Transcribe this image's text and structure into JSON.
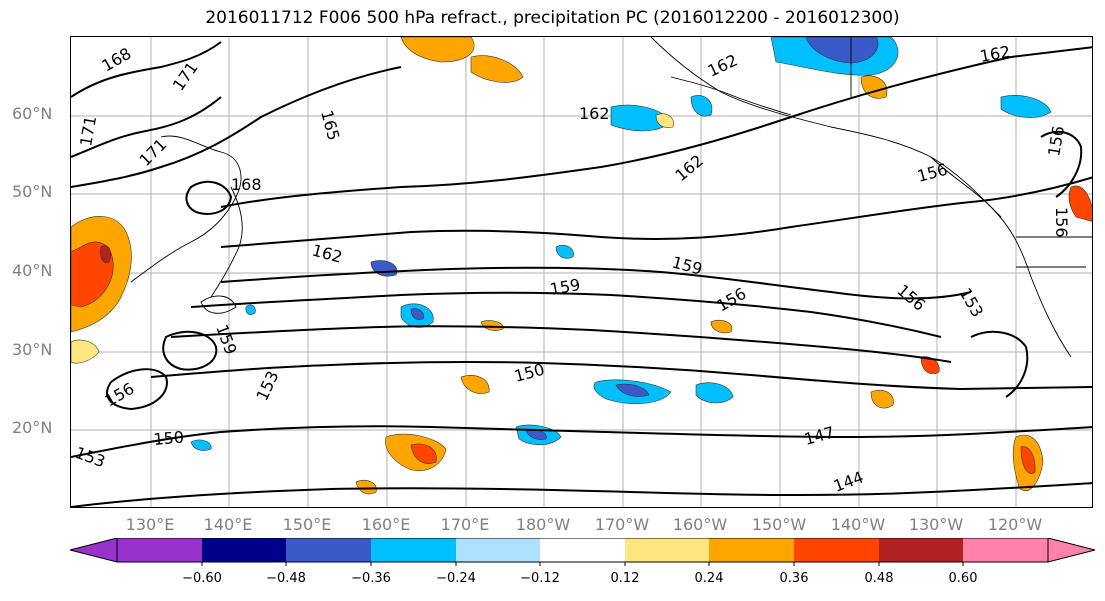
{
  "title": "2016011712 F006 500 hPa refract., precipitation PC (2016012200 - 2016012300)",
  "lat_labels": [
    "60°N",
    "50°N",
    "40°N",
    "30°N",
    "20°N"
  ],
  "lon_labels": [
    "130°E",
    "140°E",
    "150°E",
    "160°E",
    "170°E",
    "180°W",
    "170°W",
    "160°W",
    "150°W",
    "140°W",
    "130°W",
    "120°W"
  ],
  "contour_labels": [
    "168",
    "171",
    "171",
    "171",
    "165",
    "162",
    "162",
    "162",
    "162",
    "168",
    "162",
    "159",
    "159",
    "156",
    "156",
    "156",
    "159",
    "153",
    "150",
    "150",
    "147",
    "144",
    "156",
    "153",
    "153",
    "156",
    "156"
  ],
  "colorbar": {
    "colors": [
      "#9932cc",
      "#00008b",
      "#3a5bc7",
      "#00bfff",
      "#b0e0ff",
      "#ffffff",
      "#ffe680",
      "#ffa500",
      "#ff4500",
      "#b22222",
      "#ff82ab"
    ],
    "ticks": [
      "−0.60",
      "−0.48",
      "−0.36",
      "−0.24",
      "−0.12",
      "0.12",
      "0.24",
      "0.36",
      "0.48",
      "0.60"
    ]
  }
}
